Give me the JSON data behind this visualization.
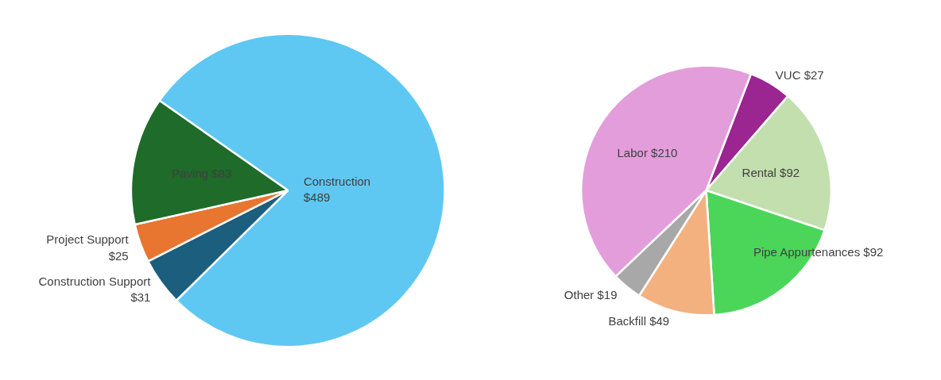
{
  "chart_data": [
    {
      "type": "pie",
      "categories": [
        "Construction",
        "Construction Support",
        "Project Support",
        "Paving"
      ],
      "values": [
        489,
        31,
        25,
        83
      ],
      "value_labels": [
        "$489",
        "$31",
        "$25",
        "$83"
      ],
      "colors": [
        "#5ec8f2",
        "#1b5e7e",
        "#e87530",
        "#1e6b2a"
      ],
      "legend": false
    },
    {
      "type": "pie",
      "categories": [
        "VUC",
        "Rental",
        "Pipe Appurtenances",
        "Backfill",
        "Other",
        "Labor"
      ],
      "values": [
        27,
        92,
        92,
        49,
        19,
        210
      ],
      "value_labels": [
        "$27",
        "$92",
        "$92",
        "$49",
        "$19",
        "$210"
      ],
      "colors": [
        "#9b2591",
        "#c2dfad",
        "#4bd65a",
        "#f3b17f",
        "#a8a8a8",
        "#e39ddb"
      ],
      "legend": false
    }
  ]
}
